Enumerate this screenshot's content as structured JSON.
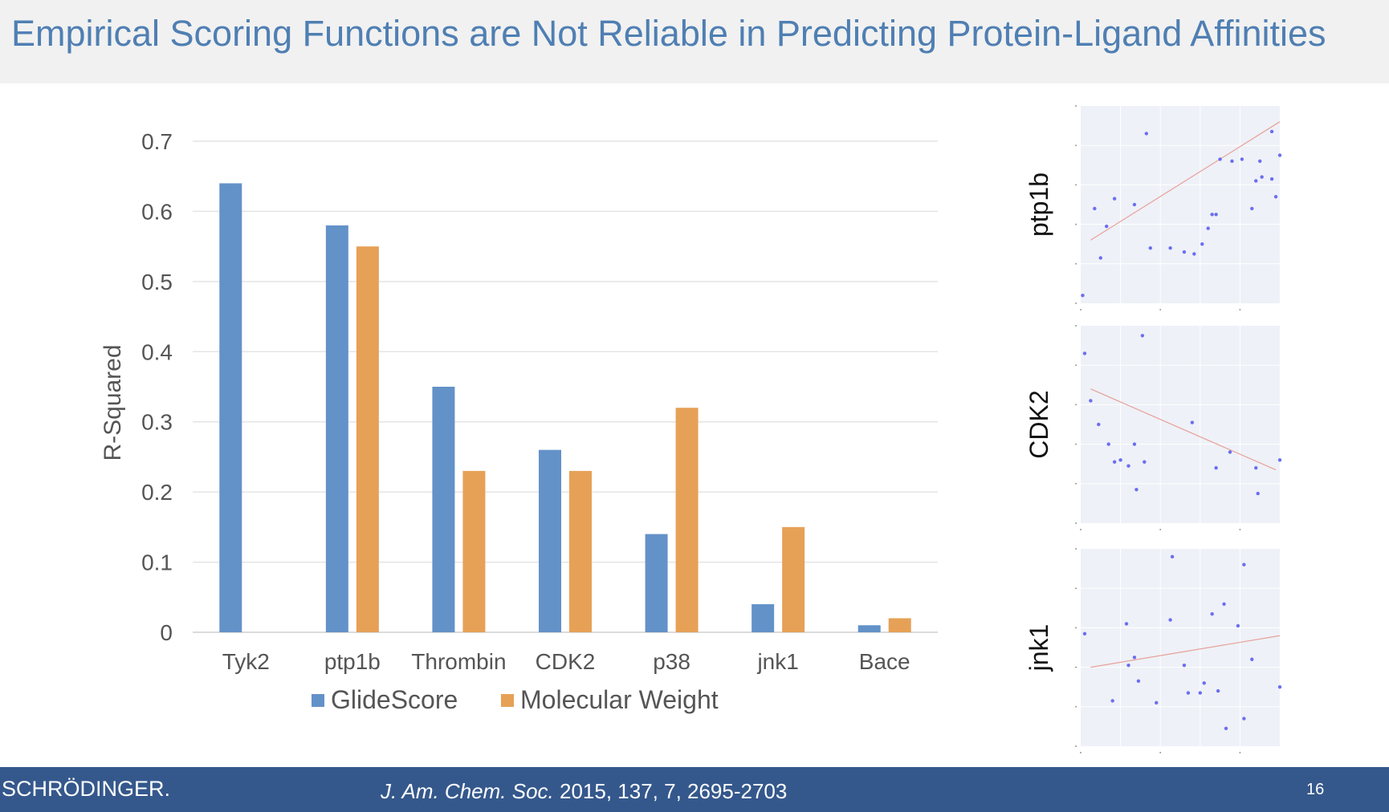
{
  "slide": {
    "title": "Empirical Scoring Functions are Not Reliable in Predicting Protein-Ligand Affinities",
    "page_number": "16"
  },
  "footer": {
    "brand": "SCHRÖDINGER.",
    "citation_journal": "J. Am. Chem. Soc.",
    "citation_rest": " 2015, 137, 7, 2695-2703"
  },
  "colors": {
    "glide": "#6392c8",
    "mw": "#e6a157",
    "scatter_point": "#6b6ef0",
    "scatter_line": "#e8a09a",
    "panel_bg": "#eef1f7"
  },
  "chart_data": [
    {
      "type": "bar",
      "title": "",
      "xlabel": "",
      "ylabel": "R-Squared",
      "ylim": [
        0,
        0.7
      ],
      "yticks": [
        "0",
        "0.1",
        "0.2",
        "0.3",
        "0.4",
        "0.5",
        "0.6",
        "0.7"
      ],
      "categories": [
        "Tyk2",
        "ptp1b",
        "Thrombin",
        "CDK2",
        "p38",
        "jnk1",
        "Bace"
      ],
      "series": [
        {
          "name": "GlideScore",
          "values": [
            0.64,
            0.58,
            0.35,
            0.26,
            0.14,
            0.04,
            0.01
          ]
        },
        {
          "name": "Molecular Weight",
          "values": [
            null,
            0.55,
            0.23,
            0.23,
            0.32,
            0.15,
            0.02
          ]
        }
      ],
      "grid": true,
      "legend": "bottom"
    },
    {
      "type": "scatter",
      "label": "ptp1b",
      "points": [
        [
          0.01,
          0.96
        ],
        [
          0.1,
          0.77
        ],
        [
          0.13,
          0.61
        ],
        [
          0.07,
          0.52
        ],
        [
          0.17,
          0.47
        ],
        [
          0.27,
          0.5
        ],
        [
          0.33,
          0.14
        ],
        [
          0.35,
          0.72
        ],
        [
          0.45,
          0.72
        ],
        [
          0.52,
          0.74
        ],
        [
          0.57,
          0.75
        ],
        [
          0.61,
          0.7
        ],
        [
          0.64,
          0.62
        ],
        [
          0.66,
          0.55
        ],
        [
          0.68,
          0.55
        ],
        [
          0.7,
          0.27
        ],
        [
          0.76,
          0.28
        ],
        [
          0.81,
          0.27
        ],
        [
          0.86,
          0.52
        ],
        [
          0.88,
          0.38
        ],
        [
          0.9,
          0.28
        ],
        [
          0.91,
          0.36
        ],
        [
          0.96,
          0.37
        ],
        [
          0.96,
          0.13
        ],
        [
          0.98,
          0.46
        ],
        [
          1.0,
          0.25
        ]
      ],
      "trend": [
        [
          0.05,
          0.68
        ],
        [
          1.0,
          0.08
        ]
      ]
    },
    {
      "type": "scatter",
      "label": "CDK2",
      "points": [
        [
          0.02,
          0.14
        ],
        [
          0.05,
          0.38
        ],
        [
          0.09,
          0.5
        ],
        [
          0.14,
          0.6
        ],
        [
          0.17,
          0.69
        ],
        [
          0.2,
          0.68
        ],
        [
          0.24,
          0.71
        ],
        [
          0.27,
          0.6
        ],
        [
          0.28,
          0.83
        ],
        [
          0.31,
          0.05
        ],
        [
          0.32,
          0.69
        ],
        [
          0.56,
          0.49
        ],
        [
          0.68,
          0.72
        ],
        [
          0.75,
          0.64
        ],
        [
          0.88,
          0.72
        ],
        [
          0.89,
          0.85
        ],
        [
          1.0,
          0.68
        ]
      ],
      "trend": [
        [
          0.05,
          0.32
        ],
        [
          0.98,
          0.73
        ]
      ]
    },
    {
      "type": "scatter",
      "label": "jnk1",
      "points": [
        [
          0.02,
          0.43
        ],
        [
          0.16,
          0.77
        ],
        [
          0.23,
          0.38
        ],
        [
          0.24,
          0.59
        ],
        [
          0.27,
          0.55
        ],
        [
          0.29,
          0.67
        ],
        [
          0.38,
          0.78
        ],
        [
          0.45,
          0.36
        ],
        [
          0.46,
          0.04
        ],
        [
          0.52,
          0.59
        ],
        [
          0.54,
          0.73
        ],
        [
          0.6,
          0.73
        ],
        [
          0.62,
          0.68
        ],
        [
          0.66,
          0.33
        ],
        [
          0.69,
          0.72
        ],
        [
          0.72,
          0.28
        ],
        [
          0.73,
          0.91
        ],
        [
          0.79,
          0.39
        ],
        [
          0.82,
          0.86
        ],
        [
          0.82,
          0.08
        ],
        [
          0.86,
          0.56
        ],
        [
          1.0,
          0.7
        ]
      ],
      "trend": [
        [
          0.05,
          0.6
        ],
        [
          1.0,
          0.44
        ]
      ]
    }
  ]
}
